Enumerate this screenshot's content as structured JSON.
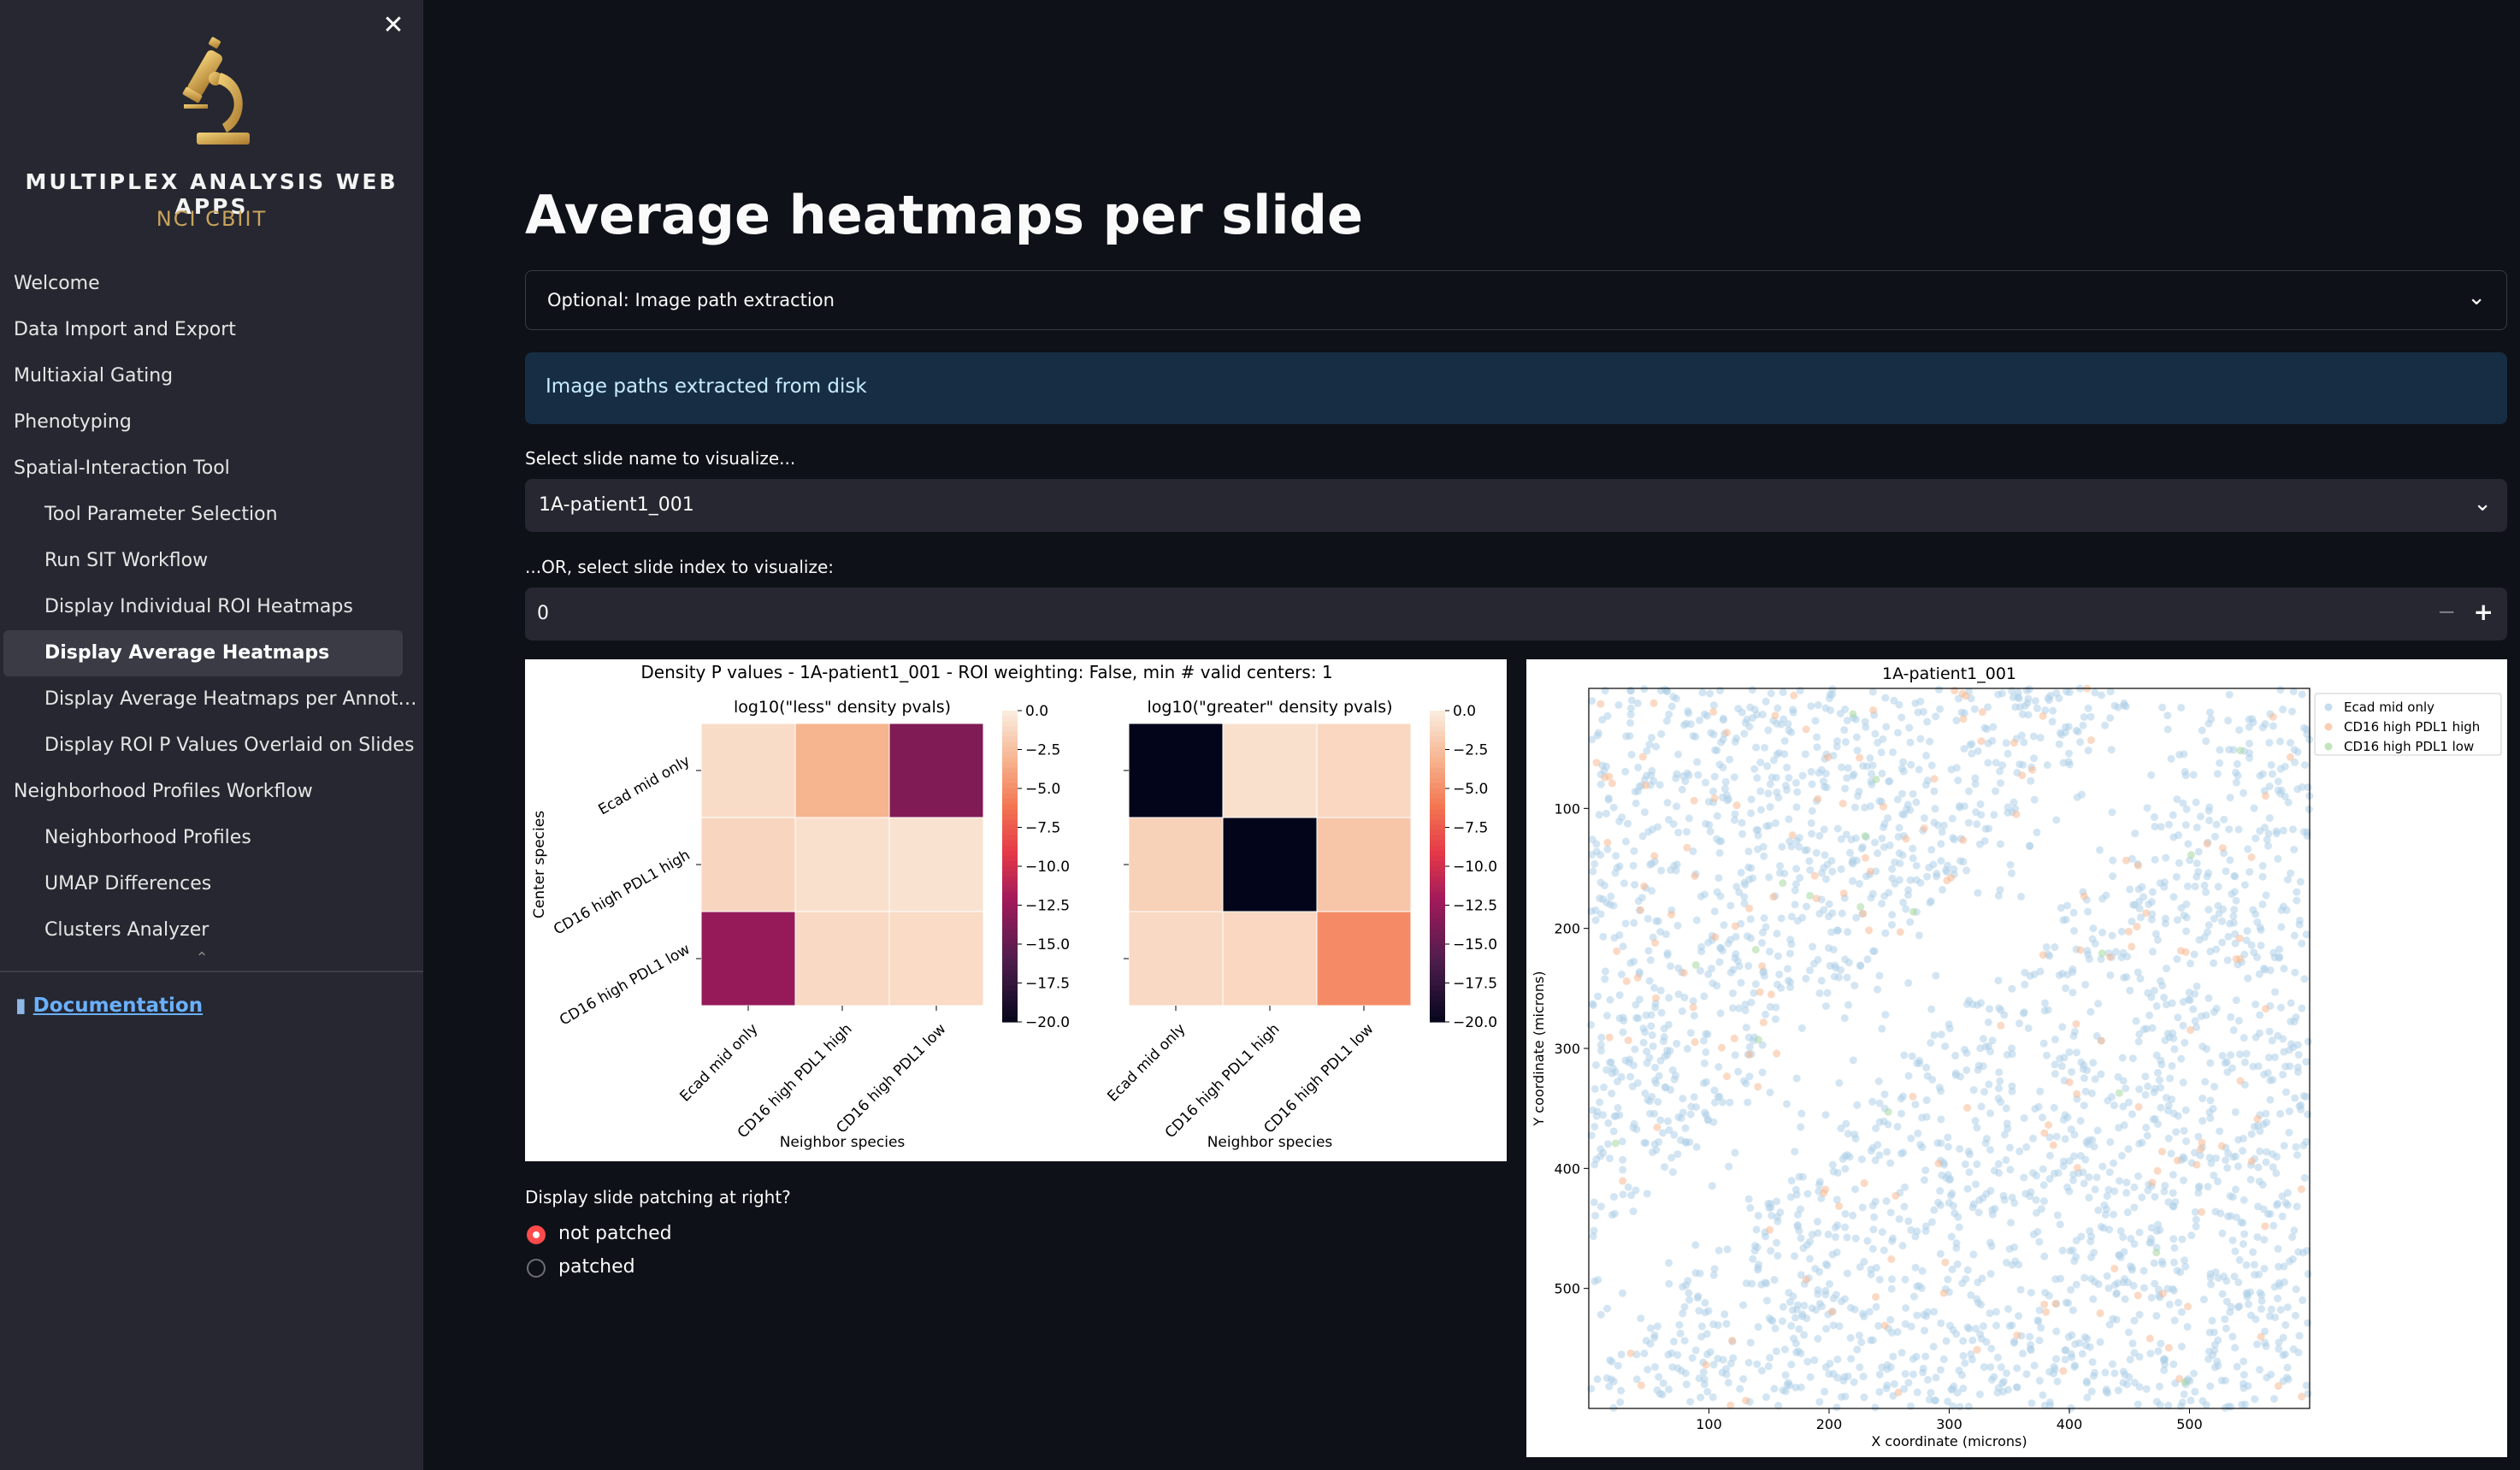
{
  "sidebar": {
    "brand_title": "MULTIPLEX ANALYSIS WEB APPS",
    "brand_subtitle": "NCI CBIIT",
    "close_label": "✕",
    "nav": [
      {
        "label": "Welcome"
      },
      {
        "label": "Data Import and Export"
      },
      {
        "label": "Multiaxial Gating"
      },
      {
        "label": "Phenotyping"
      },
      {
        "label": "Spatial-Interaction Tool"
      },
      {
        "label": "Tool Parameter Selection"
      },
      {
        "label": "Run SIT Workflow"
      },
      {
        "label": "Display Individual ROI Heatmaps"
      },
      {
        "label": "Display Average Heatmaps"
      },
      {
        "label": "Display Average Heatmaps per Annota..."
      },
      {
        "label": "Display ROI P Values Overlaid on Slides"
      },
      {
        "label": "Neighborhood Profiles Workflow"
      },
      {
        "label": "Neighborhood Profiles"
      },
      {
        "label": "UMAP Differences"
      },
      {
        "label": "Clusters Analyzer"
      }
    ],
    "documentation_label": "Documentation"
  },
  "main": {
    "title": "Average heatmaps per slide",
    "expander_label": "Optional: Image path extraction",
    "info_message": "Image paths extracted from disk",
    "slide_select_label": "Select slide name to visualize...",
    "slide_select_value": "1A-patient1_001",
    "index_label": "...OR, select slide index to visualize:",
    "index_value": "0",
    "radio_label": "Display slide patching at right?",
    "radio_options": [
      "not patched",
      "patched"
    ],
    "radio_selected": "not patched"
  },
  "chart_data": [
    {
      "type": "heatmap",
      "title": "Density P values - 1A-patient1_001 - ROI weighting: False, min # valid centers: 1",
      "panels": [
        {
          "subtitle": "log10(\"less\" density pvals)",
          "rows": [
            "Ecad mid only",
            "CD16 high PDL1 high",
            "CD16 high PDL1 low"
          ],
          "cols": [
            "Ecad mid only",
            "CD16 high PDL1 high",
            "CD16 high PDL1 low"
          ],
          "values": [
            [
              -0.8,
              -3.0,
              -13.5
            ],
            [
              -1.2,
              -0.6,
              -0.5
            ],
            [
              -12.5,
              -1.0,
              -0.9
            ]
          ],
          "xlabel": "Neighbor species",
          "ylabel": "Center species"
        },
        {
          "subtitle": "log10(\"greater\" density pvals)",
          "rows": [
            "Ecad mid only",
            "CD16 high PDL1 high",
            "CD16 high PDL1 low"
          ],
          "cols": [
            "Ecad mid only",
            "CD16 high PDL1 high",
            "CD16 high PDL1 low"
          ],
          "values": [
            [
              -20.0,
              -0.6,
              -1.1
            ],
            [
              -1.4,
              -20.0,
              -2.0
            ],
            [
              -1.0,
              -1.1,
              -5.0
            ]
          ],
          "xlabel": "Neighbor species",
          "ylabel": ""
        }
      ],
      "colorbar": {
        "range": [
          -20.0,
          0.0
        ],
        "ticks": [
          "0.0",
          "−2.5",
          "−5.0",
          "−7.5",
          "−10.0",
          "−12.5",
          "−15.0",
          "−17.5",
          "−20.0"
        ]
      }
    },
    {
      "type": "scatter",
      "title": "1A-patient1_001",
      "xlabel": "X coordinate (microns)",
      "ylabel": "Y coordinate (microns)",
      "xlim": [
        0,
        600
      ],
      "ylim": [
        0,
        600
      ],
      "y_inverted": true,
      "xticks": [
        "100",
        "200",
        "300",
        "400",
        "500"
      ],
      "yticks": [
        "100",
        "200",
        "300",
        "400",
        "500"
      ],
      "legend_position": "top-right",
      "series": [
        {
          "name": "Ecad mid only",
          "color": "#aecfe8",
          "count": 2600
        },
        {
          "name": "CD16 high PDL1 high",
          "color": "#f7b993",
          "count": 170
        },
        {
          "name": "CD16 high PDL1 low",
          "color": "#a8d9a0",
          "count": 18
        }
      ]
    }
  ]
}
